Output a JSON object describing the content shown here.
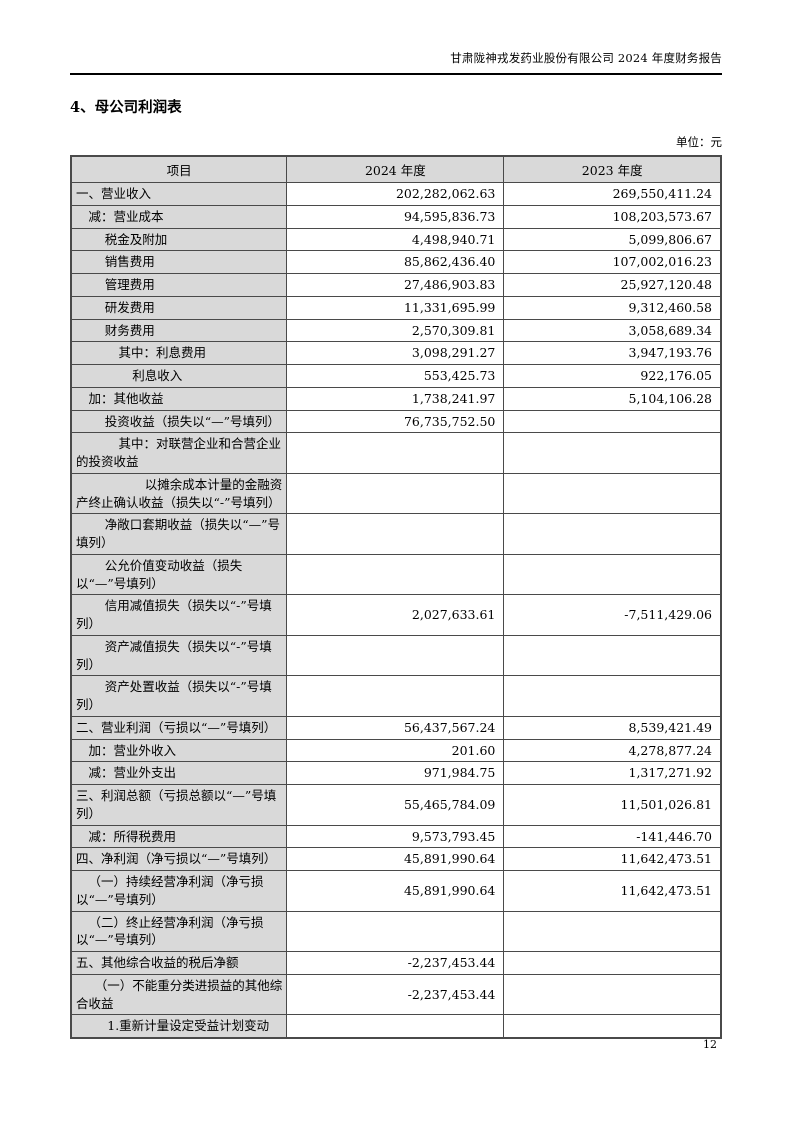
{
  "page": {
    "header": "甘肃陇神戎发药业股份有限公司 2024 年度财务报告",
    "section_title": "4、母公司利润表",
    "unit_label": "单位：元",
    "page_number": "12"
  },
  "table": {
    "columns": [
      "项目",
      "2024 年度",
      "2023 年度"
    ],
    "rows": [
      {
        "label": "一、营业收入",
        "indent": 0,
        "v2024": "202,282,062.63",
        "v2023": "269,550,411.24"
      },
      {
        "label": "减：营业成本",
        "indent": 1,
        "v2024": "94,595,836.73",
        "v2023": "108,203,573.67"
      },
      {
        "label": "税金及附加",
        "indent": 2.3,
        "v2024": "4,498,940.71",
        "v2023": "5,099,806.67"
      },
      {
        "label": "销售费用",
        "indent": 2.3,
        "v2024": "85,862,436.40",
        "v2023": "107,002,016.23"
      },
      {
        "label": "管理费用",
        "indent": 2.3,
        "v2024": "27,486,903.83",
        "v2023": "25,927,120.48"
      },
      {
        "label": "研发费用",
        "indent": 2.3,
        "v2024": "11,331,695.99",
        "v2023": "9,312,460.58"
      },
      {
        "label": "财务费用",
        "indent": 2.3,
        "v2024": "2,570,309.81",
        "v2023": "3,058,689.34"
      },
      {
        "label": "其中：利息费用",
        "indent": 3.4,
        "v2024": "3,098,291.27",
        "v2023": "3,947,193.76"
      },
      {
        "label": "利息收入",
        "indent": 4.5,
        "v2024": "553,425.73",
        "v2023": "922,176.05"
      },
      {
        "label": "加：其他收益",
        "indent": 1,
        "v2024": "1,738,241.97",
        "v2023": "5,104,106.28"
      },
      {
        "label": "投资收益（损失以“—”号填列）",
        "indent": 2.3,
        "v2024": "76,735,752.50",
        "v2023": ""
      },
      {
        "label": "其中：对联营企业和合营企业的投资收益",
        "indent": 3.4,
        "v2024": "",
        "v2023": ""
      },
      {
        "label": "以摊余成本计量的金融资产终止确认收益（损失以“-”号填列）",
        "indent": 5.5,
        "v2024": "",
        "v2023": ""
      },
      {
        "label": "净敞口套期收益（损失以“—”号填列）",
        "indent": 2.3,
        "v2024": "",
        "v2023": ""
      },
      {
        "label": "公允价值变动收益（损失以“—”号填列）",
        "indent": 2.3,
        "v2024": "",
        "v2023": ""
      },
      {
        "label": "信用减值损失（损失以“-”号填列）",
        "indent": 2.3,
        "v2024": "2,027,633.61",
        "v2023": "-7,511,429.06"
      },
      {
        "label": "资产减值损失（损失以“-”号填列）",
        "indent": 2.3,
        "v2024": "",
        "v2023": ""
      },
      {
        "label": "资产处置收益（损失以“-”号填列）",
        "indent": 2.3,
        "v2024": "",
        "v2023": ""
      },
      {
        "label": "二、营业利润（亏损以“—”号填列）",
        "indent": 0,
        "v2024": "56,437,567.24",
        "v2023": "8,539,421.49"
      },
      {
        "label": "加：营业外收入",
        "indent": 1,
        "v2024": "201.60",
        "v2023": "4,278,877.24"
      },
      {
        "label": "减：营业外支出",
        "indent": 1,
        "v2024": "971,984.75",
        "v2023": "1,317,271.92"
      },
      {
        "label": "三、利润总额（亏损总额以“—”号填列）",
        "indent": 0,
        "v2024": "55,465,784.09",
        "v2023": "11,501,026.81"
      },
      {
        "label": "减：所得税费用",
        "indent": 1,
        "v2024": "9,573,793.45",
        "v2023": "-141,446.70"
      },
      {
        "label": "四、净利润（净亏损以“—”号填列）",
        "indent": 0,
        "v2024": "45,891,990.64",
        "v2023": "11,642,473.51"
      },
      {
        "label": "（一）持续经营净利润（净亏损以“—”号填列）",
        "indent": 1,
        "v2024": "45,891,990.64",
        "v2023": "11,642,473.51"
      },
      {
        "label": "（二）终止经营净利润（净亏损以“—”号填列）",
        "indent": 1,
        "v2024": "",
        "v2023": ""
      },
      {
        "label": "五、其他综合收益的税后净额",
        "indent": 0,
        "v2024": "-2,237,453.44",
        "v2023": ""
      },
      {
        "label": "（一）不能重分类进损益的其他综合收益",
        "indent": 1.5,
        "v2024": "-2,237,453.44",
        "v2023": ""
      },
      {
        "label": "1.重新计量设定受益计划变动",
        "indent": 2.5,
        "v2024": "",
        "v2023": ""
      }
    ]
  }
}
